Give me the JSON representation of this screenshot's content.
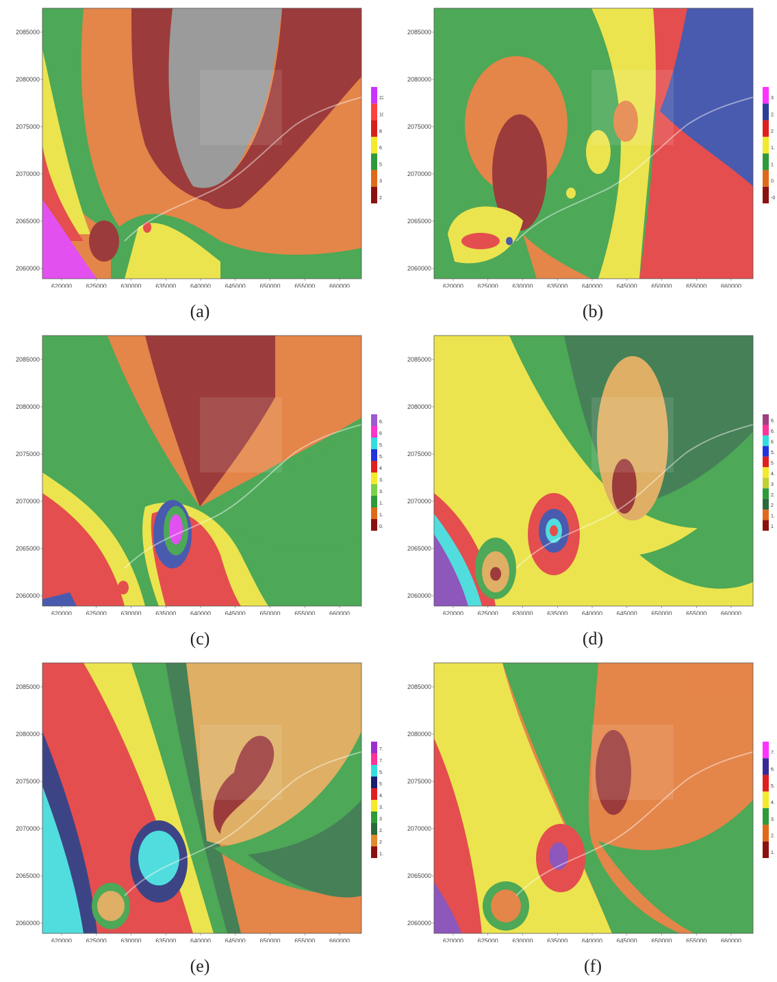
{
  "figure": {
    "panels": [
      {
        "caption": "(a)",
        "legend": {
          "labels": [
            "22",
            "10",
            "8",
            "6",
            "5",
            "3",
            "2"
          ],
          "colors": [
            "#cc33ff",
            "#ff4040",
            "#d62020",
            "#f2ea2a",
            "#2e9a3a",
            "#e06a1a",
            "#8b1010"
          ]
        }
      },
      {
        "caption": "(b)",
        "legend": {
          "labels": [
            "3",
            "2.5",
            "2",
            "1.5",
            "1",
            "0.5",
            "-0.5"
          ],
          "colors": [
            "#ff33ff",
            "#2a3f95",
            "#e02020",
            "#f2ea2a",
            "#2e9a3a",
            "#e06a1a",
            "#8b1010"
          ]
        }
      },
      {
        "caption": "(c)",
        "legend": {
          "labels": [
            "6.4",
            "6",
            "5.8",
            "5.4",
            "4",
            "3.8",
            "3.4",
            "1.8",
            "1.6",
            "0.8"
          ],
          "colors": [
            "#9b59d0",
            "#ff33cc",
            "#33dddd",
            "#2233dd",
            "#e02020",
            "#f2ea2a",
            "#7ad04a",
            "#2e9a3a",
            "#e06a1a",
            "#8b1010"
          ]
        }
      },
      {
        "caption": "(d)",
        "legend": {
          "labels": [
            "6.5",
            "6.5",
            "6",
            "5.5",
            "5",
            "4.5",
            "3",
            "2.5",
            "2",
            "1.5",
            "1"
          ],
          "colors": [
            "#a04080",
            "#ff3399",
            "#33dddd",
            "#2233dd",
            "#e02020",
            "#f2ea2a",
            "#c0d030",
            "#2e9a3a",
            "#2a6a3a",
            "#e06a1a",
            "#8b1010"
          ]
        }
      },
      {
        "caption": "(e)",
        "legend": {
          "labels": [
            "7.65",
            "7.25",
            "5.65",
            "5",
            "4.25",
            "3.65",
            "3",
            "2.35",
            "2",
            "1.65"
          ],
          "colors": [
            "#9b30d0",
            "#ff3399",
            "#33dddd",
            "#1a1f70",
            "#e02020",
            "#f2ea2a",
            "#2e9a3a",
            "#2a6a3a",
            "#e08a2a",
            "#8b1010"
          ]
        }
      },
      {
        "caption": "(f)",
        "legend": {
          "labels": [
            "7.5",
            "6.5",
            "5.5",
            "4.5",
            "3.5",
            "2.5",
            "1.5"
          ],
          "colors": [
            "#ff33ff",
            "#3a2a95",
            "#e02020",
            "#f2ea2a",
            "#2e9a3a",
            "#e06a1a",
            "#8b1010"
          ]
        }
      }
    ],
    "y_ticks": [
      "2085000",
      "2080000",
      "2075000",
      "2070000",
      "2065000",
      "2060000"
    ],
    "x_ticks": [
      "620000",
      "625000",
      "630000",
      "635000",
      "640000",
      "645000",
      "650000",
      "655000",
      "660000"
    ],
    "zone_colors": {
      "dark_red": "#8b1a1a",
      "orange": "#e0702a",
      "yellow": "#e8e030",
      "green": "#2e9a3a",
      "dark_green": "#256b3a",
      "red": "#e03030",
      "blue": "#2a3fa0",
      "navy": "#1c2470",
      "cyan": "#33d8d8",
      "magenta": "#dd33ee",
      "purple": "#7a3ab0",
      "gray": "#8a8a8a",
      "tan": "#d9a24a"
    }
  }
}
